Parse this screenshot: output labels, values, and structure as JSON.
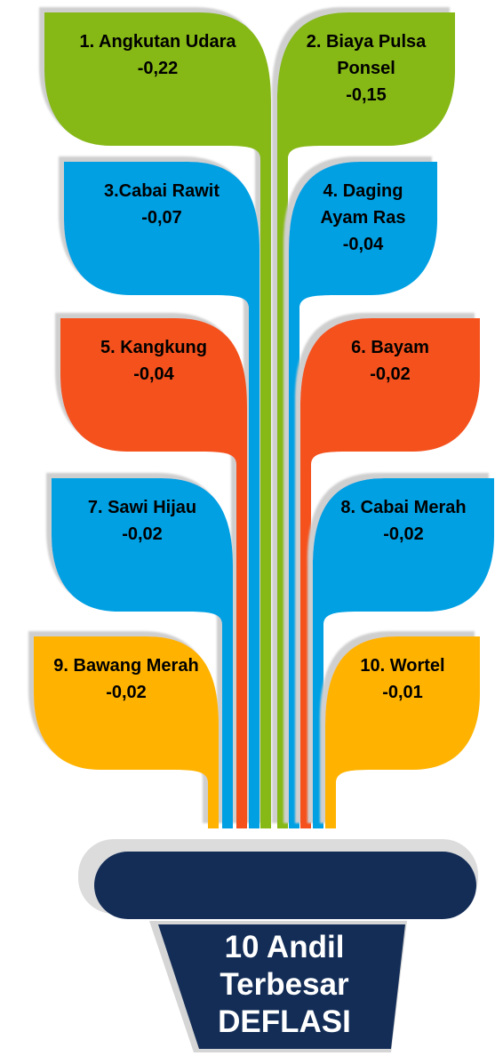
{
  "items": [
    {
      "label": "1. Angkutan Udara",
      "value": "-0,22"
    },
    {
      "label": "2. Biaya Pulsa Ponsel",
      "value": "-0,15"
    },
    {
      "label": "3.Cabai Rawit",
      "value": "-0,07"
    },
    {
      "label": "4. Daging Ayam Ras",
      "value": "-0,04"
    },
    {
      "label": "5. Kangkung",
      "value": "-0,04"
    },
    {
      "label": "6. Bayam",
      "value": "-0,02"
    },
    {
      "label": "7. Sawi Hijau",
      "value": "-0,02"
    },
    {
      "label": "8. Cabai Merah",
      "value": "-0,02"
    },
    {
      "label": "9. Bawang Merah",
      "value": "-0,02"
    },
    {
      "label": "10. Wortel",
      "value": "-0,01"
    }
  ],
  "pot": {
    "title": "10 Andil Terbesar DEFLASI"
  }
}
